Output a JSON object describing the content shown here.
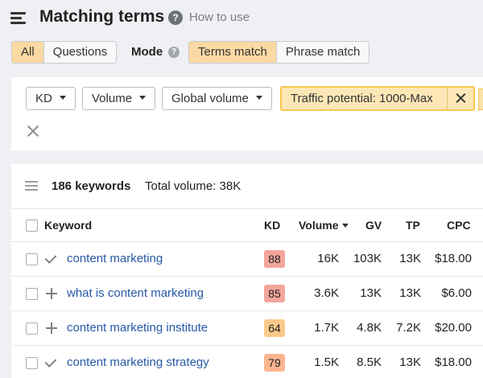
{
  "header": {
    "title": "Matching terms",
    "help_symbol": "?",
    "how_to_use": "How to use"
  },
  "type_tabs": [
    {
      "label": "All",
      "active": true
    },
    {
      "label": "Questions",
      "active": false
    }
  ],
  "mode": {
    "label": "Mode",
    "help_symbol": "?",
    "options": [
      {
        "label": "Terms match",
        "active": true
      },
      {
        "label": "Phrase match",
        "active": false
      }
    ]
  },
  "filters": {
    "dropdowns": [
      "KD",
      "Volume",
      "Global volume"
    ],
    "active_filter": "Traffic potential: 1000-Max"
  },
  "results": {
    "count": "186 keywords",
    "total_volume": "Total volume: 38K"
  },
  "table": {
    "columns": {
      "keyword": "Keyword",
      "kd": "KD",
      "volume": "Volume",
      "gv": "GV",
      "tp": "TP",
      "cpc": "CPC"
    },
    "rows": [
      {
        "added": true,
        "keyword": "content marketing",
        "kd": "88",
        "kd_color": "#f4a59b",
        "volume": "16K",
        "gv": "103K",
        "tp": "13K",
        "cpc": "$18.00"
      },
      {
        "added": false,
        "keyword": "what is content marketing",
        "kd": "85",
        "kd_color": "#f4a59b",
        "volume": "3.6K",
        "gv": "13K",
        "tp": "13K",
        "cpc": "$6.00"
      },
      {
        "added": false,
        "keyword": "content marketing institute",
        "kd": "64",
        "kd_color": "#fbc98a",
        "volume": "1.7K",
        "gv": "4.8K",
        "tp": "7.2K",
        "cpc": "$20.00"
      },
      {
        "added": true,
        "keyword": "content marketing strategy",
        "kd": "79",
        "kd_color": "#fbb58f",
        "volume": "1.5K",
        "gv": "8.5K",
        "tp": "13K",
        "cpc": "$18.00"
      }
    ]
  },
  "colors": {
    "accent_active": "#fbd9a2",
    "filter_highlight": "#fde7b6",
    "link": "#2659a6"
  }
}
